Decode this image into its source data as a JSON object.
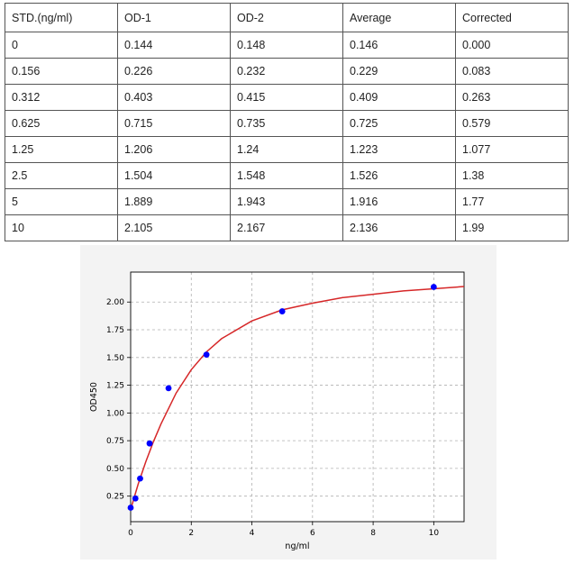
{
  "table": {
    "headers": [
      "STD.(ng/ml)",
      "OD-1",
      "OD-2",
      "Average",
      "Corrected"
    ],
    "rows": [
      [
        "0",
        "0.144",
        "0.148",
        "0.146",
        "0.000"
      ],
      [
        "0.156",
        "0.226",
        "0.232",
        "0.229",
        "0.083"
      ],
      [
        "0.312",
        "0.403",
        "0.415",
        "0.409",
        "0.263"
      ],
      [
        "0.625",
        "0.715",
        "0.735",
        "0.725",
        "0.579"
      ],
      [
        "1.25",
        "1.206",
        "1.24",
        "1.223",
        "1.077"
      ],
      [
        "2.5",
        "1.504",
        "1.548",
        "1.526",
        "1.38"
      ],
      [
        "5",
        "1.889",
        "1.943",
        "1.916",
        "1.77"
      ],
      [
        "10",
        "2.105",
        "2.167",
        "2.136",
        "1.99"
      ]
    ]
  },
  "chart_data": {
    "type": "scatter",
    "xlabel": "ng/ml",
    "ylabel": "OD450",
    "xlim": [
      0,
      11
    ],
    "ylim": [
      0.02,
      2.27
    ],
    "xticks": [
      "0",
      "2",
      "4",
      "6",
      "8",
      "10"
    ],
    "yticks": [
      "0.25",
      "0.50",
      "0.75",
      "1.00",
      "1.25",
      "1.50",
      "1.75",
      "2.00"
    ],
    "grid": true,
    "points": {
      "x": [
        0,
        0.156,
        0.312,
        0.625,
        1.25,
        2.5,
        5,
        10
      ],
      "y": [
        0.146,
        0.229,
        0.409,
        0.725,
        1.223,
        1.526,
        1.916,
        2.136
      ],
      "color": "#0000ff"
    },
    "fit_curve": {
      "color": "#d62728",
      "x": [
        0,
        0.25,
        0.5,
        0.75,
        1,
        1.5,
        2,
        2.5,
        3,
        4,
        5,
        6,
        7,
        8,
        9,
        10,
        11
      ],
      "y": [
        0.13,
        0.36,
        0.56,
        0.74,
        0.9,
        1.18,
        1.39,
        1.55,
        1.67,
        1.83,
        1.93,
        1.99,
        2.04,
        2.07,
        2.1,
        2.12,
        2.14
      ]
    }
  }
}
